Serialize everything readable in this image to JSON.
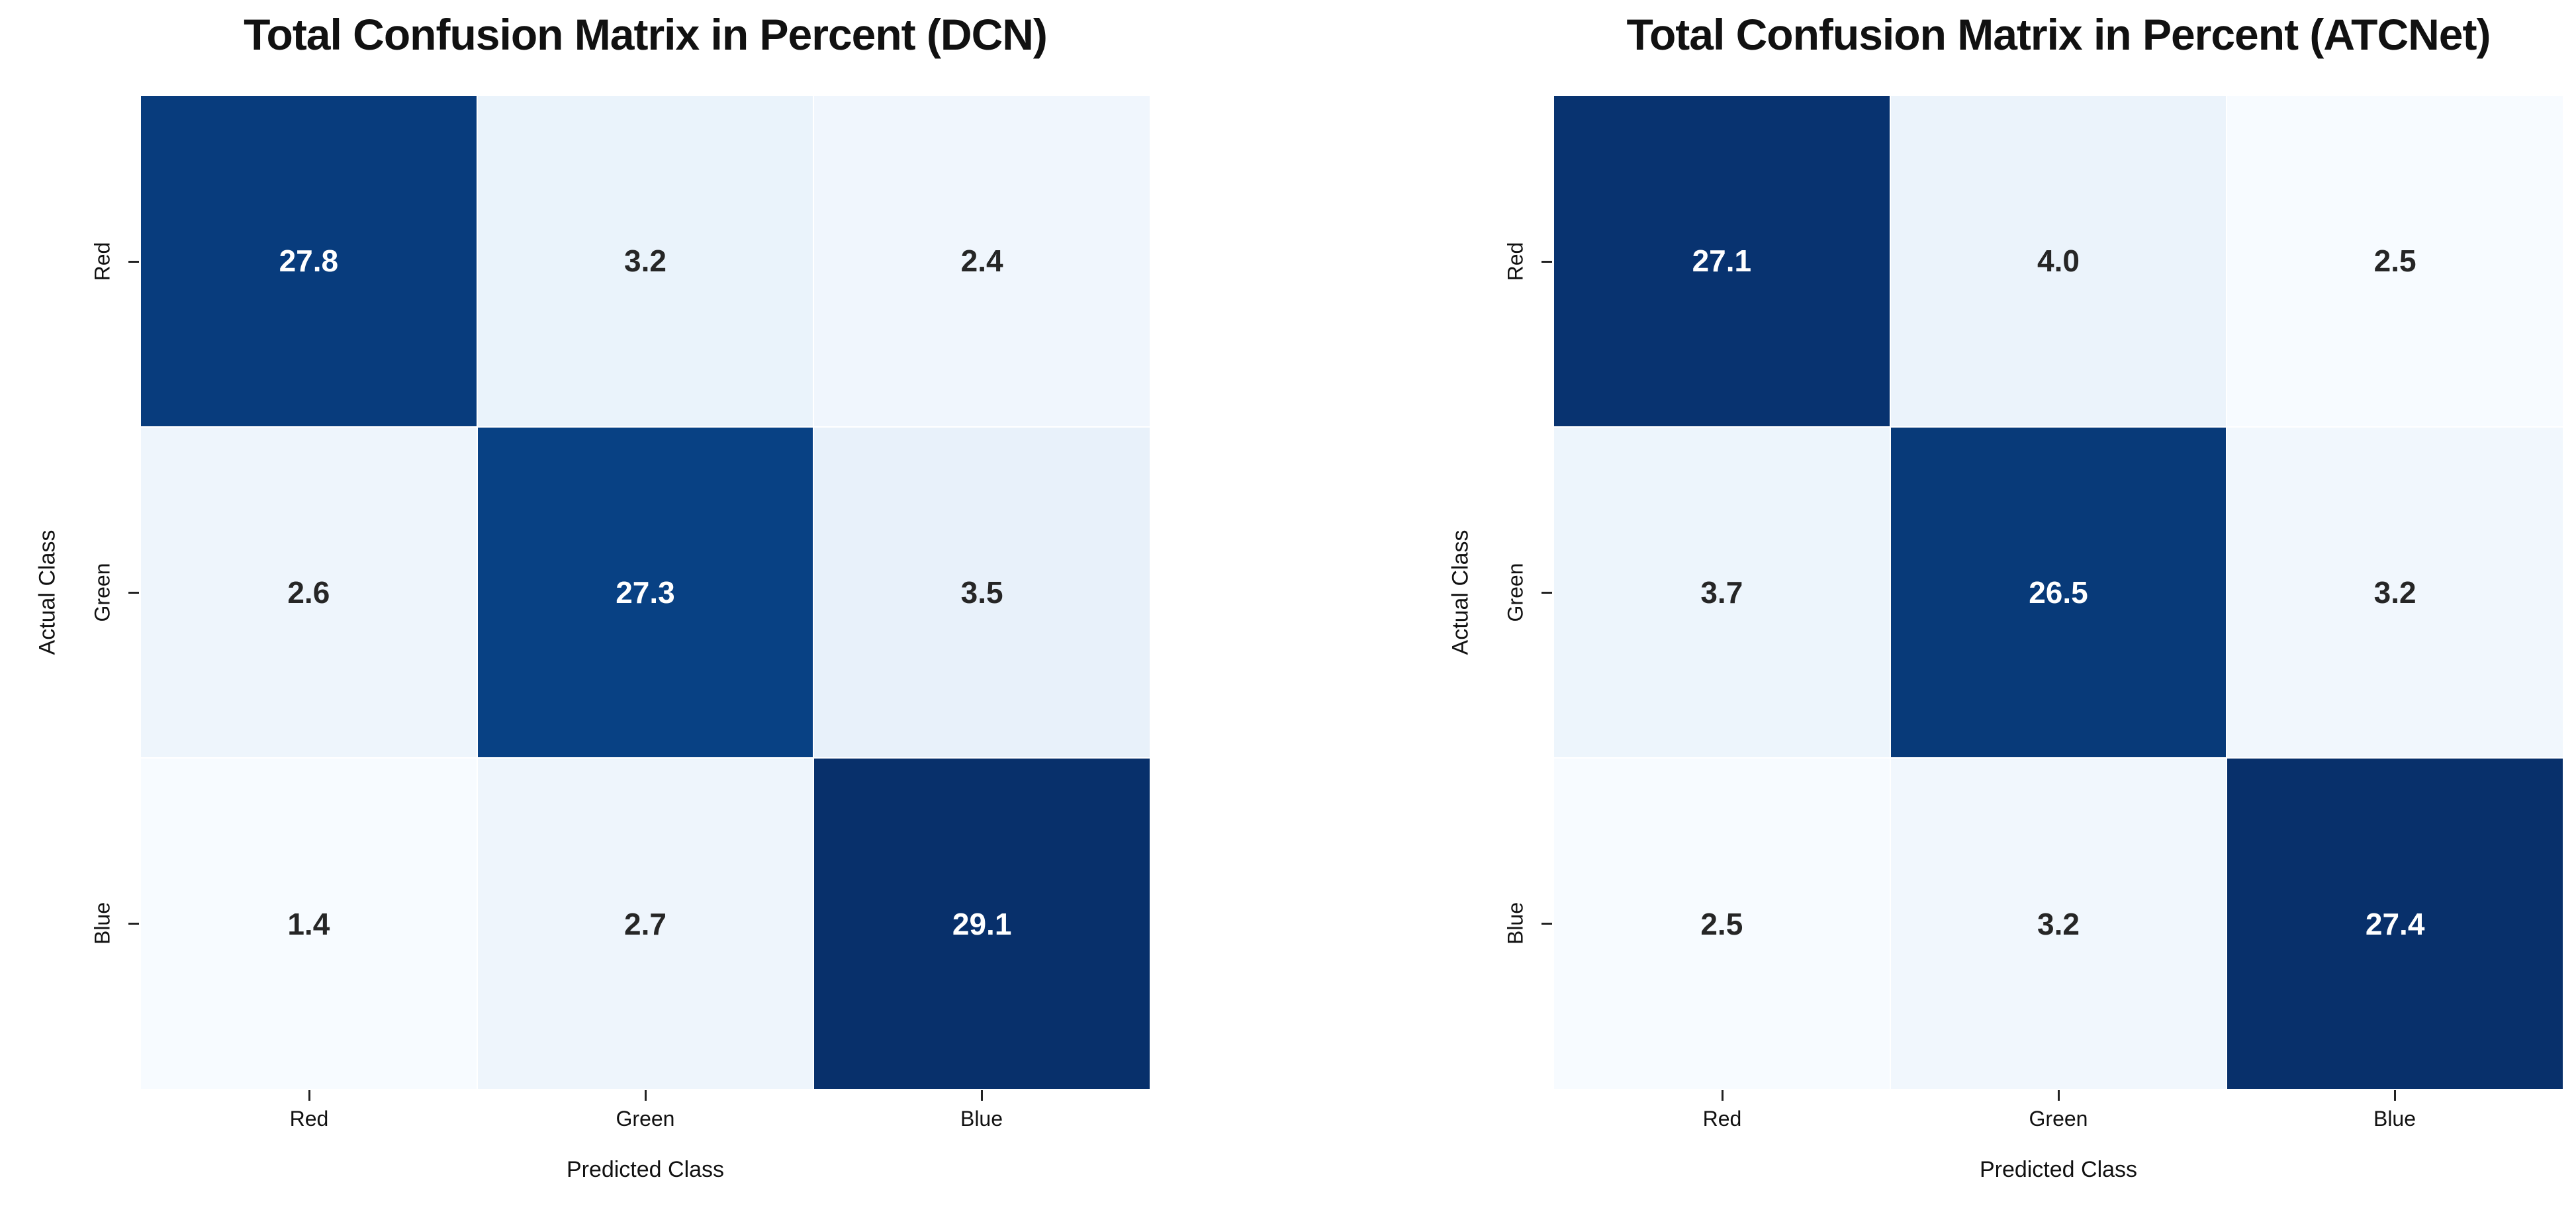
{
  "figure": {
    "background": "#ffffff",
    "colormap_name": "Blues",
    "colormap_stops": [
      {
        "t": 0.0,
        "c": "#f7fbff"
      },
      {
        "t": 0.125,
        "c": "#deebf7"
      },
      {
        "t": 0.25,
        "c": "#c6dbef"
      },
      {
        "t": 0.375,
        "c": "#9ecae1"
      },
      {
        "t": 0.5,
        "c": "#6baed6"
      },
      {
        "t": 0.625,
        "c": "#4292c6"
      },
      {
        "t": 0.75,
        "c": "#2171b5"
      },
      {
        "t": 0.875,
        "c": "#08519c"
      },
      {
        "t": 1.0,
        "c": "#08306b"
      }
    ],
    "annotation_text_colors": {
      "on_dark_cell": "#ffffff",
      "on_light_cell": "#262626"
    },
    "tick_color": "#222222",
    "title_color": "#111111"
  },
  "chart_data": [
    {
      "type": "heatmap",
      "title": "Total Confusion Matrix in Percent (DCN)",
      "xlabel": "Predicted Class",
      "ylabel": "Actual Class",
      "x_categories": [
        "Red",
        "Green",
        "Blue"
      ],
      "y_categories": [
        "Red",
        "Green",
        "Blue"
      ],
      "values": [
        [
          27.8,
          3.2,
          2.4
        ],
        [
          2.6,
          27.3,
          3.5
        ],
        [
          1.4,
          2.7,
          29.1
        ]
      ],
      "value_decimals": 1,
      "colormap": "Blues",
      "color_scale": {
        "vmin": 1.4,
        "vmax": 29.1
      },
      "legend": "none",
      "grid": "off"
    },
    {
      "type": "heatmap",
      "title": "Total Confusion Matrix in Percent (ATCNet)",
      "xlabel": "Predicted Class",
      "ylabel": "Actual Class",
      "x_categories": [
        "Red",
        "Green",
        "Blue"
      ],
      "y_categories": [
        "Red",
        "Green",
        "Blue"
      ],
      "values": [
        [
          27.1,
          4.0,
          2.5
        ],
        [
          3.7,
          26.5,
          3.2
        ],
        [
          2.5,
          3.2,
          27.4
        ]
      ],
      "value_decimals": 1,
      "colormap": "Blues",
      "color_scale": {
        "vmin": 2.5,
        "vmax": 27.4
      },
      "legend": "none",
      "grid": "off"
    }
  ]
}
